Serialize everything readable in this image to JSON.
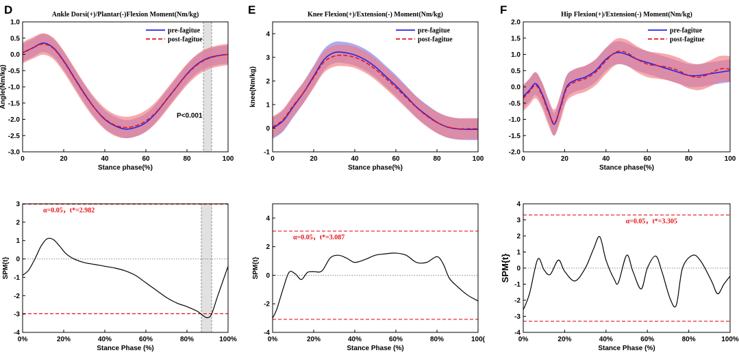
{
  "colors": {
    "pre": "#2323e8",
    "post": "#e8141b",
    "pre_band": "#8f8ff0",
    "post_band": "#f37b7f",
    "highlight": "#bdbdbd",
    "threshold": "#e8141b"
  },
  "chart_data": [
    {
      "type": "line",
      "panel_letter": "D",
      "title": "Ankle Dorsi(+)/Plantar(-)Flexion Moment(Nm/kg)",
      "xlabel": "Stance phase(%)",
      "ylabel": "Angle(Nm/kg)",
      "xlim": [
        0,
        100
      ],
      "ylim": [
        -3.0,
        1.0
      ],
      "xticks": [
        0,
        20,
        40,
        60,
        80,
        100
      ],
      "xtick_labels": [
        "0",
        "20",
        "40",
        "60",
        "80",
        "100"
      ],
      "yticks": [
        -3.0,
        -2.5,
        -2.0,
        -1.5,
        -1.0,
        -0.5,
        0.0,
        0.5,
        1.0
      ],
      "ytick_labels": [
        "-3.0",
        "-2.5",
        "-2.0",
        "-1.5",
        "-1.0",
        "-0.5",
        "0.0",
        "0.5",
        "1.0"
      ],
      "legend": [
        "pre-fagitue",
        "post-fagitue"
      ],
      "annotation": "P<0.001",
      "highlight_range": [
        88,
        92
      ],
      "x": [
        0,
        5,
        10,
        15,
        20,
        25,
        30,
        35,
        40,
        45,
        50,
        55,
        60,
        65,
        70,
        75,
        80,
        85,
        90,
        95,
        100
      ],
      "series": [
        {
          "name": "pre-fagitue",
          "values": [
            0.05,
            0.2,
            0.35,
            0.2,
            -0.2,
            -0.7,
            -1.2,
            -1.65,
            -2.0,
            -2.2,
            -2.3,
            -2.25,
            -2.1,
            -1.8,
            -1.4,
            -1.0,
            -0.6,
            -0.3,
            -0.12,
            -0.04,
            0.0
          ],
          "sd": 0.28
        },
        {
          "name": "post-fagitue",
          "values": [
            0.05,
            0.2,
            0.32,
            0.18,
            -0.22,
            -0.72,
            -1.22,
            -1.65,
            -1.98,
            -2.18,
            -2.25,
            -2.2,
            -2.05,
            -1.78,
            -1.4,
            -1.0,
            -0.62,
            -0.32,
            -0.14,
            -0.05,
            0.0
          ],
          "sd": 0.33
        }
      ]
    },
    {
      "type": "line",
      "panel_letter": "E",
      "title": "Knee Flexion(+)/Extension(-) Moment(Nm/kg)",
      "xlabel": "Stance phase(%)",
      "ylabel": "knee(Nm/kg)",
      "xlim": [
        0,
        100
      ],
      "ylim": [
        -1,
        4.5
      ],
      "xticks": [
        0,
        20,
        40,
        60,
        80,
        100
      ],
      "xtick_labels": [
        "0",
        "20",
        "40",
        "60",
        "80",
        "100"
      ],
      "yticks": [
        -1,
        0,
        1,
        2,
        3,
        4
      ],
      "ytick_labels": [
        "-1",
        "0",
        "1",
        "2",
        "3",
        "4"
      ],
      "legend": [
        "pre-fagitue",
        "post-fagitue"
      ],
      "x": [
        0,
        5,
        10,
        15,
        20,
        25,
        30,
        35,
        40,
        45,
        50,
        55,
        60,
        65,
        70,
        75,
        80,
        85,
        90,
        95,
        100
      ],
      "series": [
        {
          "name": "pre-fagitue",
          "values": [
            0.0,
            0.3,
            0.9,
            1.5,
            2.2,
            2.9,
            3.2,
            3.2,
            3.1,
            2.9,
            2.6,
            2.2,
            1.8,
            1.35,
            0.9,
            0.55,
            0.25,
            0.05,
            -0.03,
            -0.05,
            -0.05
          ],
          "sd": 0.45
        },
        {
          "name": "post-fagitue",
          "values": [
            0.05,
            0.35,
            0.95,
            1.5,
            2.15,
            2.8,
            3.05,
            3.08,
            3.0,
            2.8,
            2.5,
            2.12,
            1.72,
            1.3,
            0.88,
            0.52,
            0.24,
            0.06,
            -0.02,
            -0.02,
            -0.02
          ],
          "sd": 0.45
        }
      ]
    },
    {
      "type": "line",
      "panel_letter": "F",
      "title": "Hip  Flexion(+)/Extension(-) Moment(Nm/kg)",
      "xlabel": "Stance phase(%)",
      "ylabel": "",
      "xlim": [
        0,
        100
      ],
      "ylim": [
        -2.0,
        2.0
      ],
      "xticks": [
        0,
        20,
        40,
        60,
        80,
        100
      ],
      "xtick_labels": [
        "0",
        "20",
        "40",
        "60",
        "80",
        "100"
      ],
      "yticks": [
        -2.0,
        -1.5,
        -1.0,
        -0.5,
        0.0,
        0.5,
        1.0,
        1.5,
        2.0
      ],
      "ytick_labels": [
        "-2.0",
        "-1.5",
        "-1.0",
        "-0.5",
        "0.0",
        "0.5",
        "1.0",
        "1.5",
        "2.0"
      ],
      "legend": [
        "pre-fagitue",
        "post-fagitue"
      ],
      "x": [
        0,
        3,
        6,
        9,
        12,
        15,
        18,
        21,
        25,
        30,
        35,
        40,
        45,
        50,
        55,
        60,
        65,
        70,
        75,
        80,
        85,
        90,
        95,
        100
      ],
      "series": [
        {
          "name": "pre-fagitue",
          "values": [
            -0.3,
            -0.1,
            0.1,
            -0.2,
            -0.7,
            -1.15,
            -0.6,
            0.0,
            0.2,
            0.3,
            0.5,
            0.85,
            1.05,
            1.0,
            0.85,
            0.75,
            0.65,
            0.55,
            0.45,
            0.35,
            0.35,
            0.4,
            0.45,
            0.5
          ],
          "sd": 0.35
        },
        {
          "name": "post-fagitue",
          "values": [
            -0.35,
            -0.15,
            0.05,
            -0.25,
            -0.75,
            -1.1,
            -0.65,
            -0.05,
            0.15,
            0.25,
            0.45,
            0.8,
            1.08,
            1.05,
            0.85,
            0.7,
            0.65,
            0.6,
            0.5,
            0.35,
            0.3,
            0.4,
            0.55,
            0.55
          ],
          "sd": 0.4
        }
      ]
    },
    {
      "type": "line",
      "panel_letter": "",
      "title": "",
      "xlabel": "Stance Phase (%)",
      "ylabel": "SPM{t}",
      "xlim": [
        0,
        100
      ],
      "ylim": [
        -4,
        3
      ],
      "xticks": [
        0,
        20,
        40,
        60,
        80,
        100
      ],
      "xtick_labels": [
        "0%",
        "20%",
        "40%",
        "60%",
        "80%",
        "100%"
      ],
      "yticks": [
        -4,
        -3,
        -2,
        -1,
        0,
        1,
        2,
        3
      ],
      "ytick_labels": [
        "-4",
        "-3",
        "-2",
        "-1",
        "0",
        "1",
        "2",
        "3"
      ],
      "threshold": 2.982,
      "annotation": "α=0.05，t*=2.982",
      "highlight_range": [
        87,
        92
      ],
      "x": [
        0,
        3,
        6,
        9,
        12,
        15,
        18,
        21,
        25,
        30,
        35,
        40,
        45,
        50,
        55,
        60,
        65,
        70,
        75,
        80,
        85,
        88,
        90,
        92,
        95,
        100
      ],
      "series": [
        {
          "name": "SPM{t}",
          "values": [
            -0.9,
            -0.6,
            0.0,
            0.7,
            1.1,
            1.05,
            0.7,
            0.3,
            0.0,
            -0.2,
            -0.3,
            -0.4,
            -0.5,
            -0.65,
            -0.9,
            -1.3,
            -1.7,
            -2.1,
            -2.4,
            -2.6,
            -2.85,
            -3.1,
            -3.2,
            -3.0,
            -2.0,
            -0.4
          ]
        }
      ]
    },
    {
      "type": "line",
      "panel_letter": "",
      "title": "",
      "xlabel": "Stance Phase (%)",
      "ylabel": "SPM{t}",
      "xlim": [
        0,
        100
      ],
      "ylim": [
        -4,
        5
      ],
      "xticks": [
        0,
        20,
        40,
        60,
        80,
        100
      ],
      "xtick_labels": [
        "0%",
        "20%",
        "40%",
        "60%",
        "80%",
        "100("
      ],
      "yticks": [
        -4,
        -2,
        0,
        2,
        4
      ],
      "ytick_labels": [
        "-4",
        "-2",
        "0",
        "2",
        "4"
      ],
      "threshold": 3.087,
      "annotation": "α=0.05，t*=3.087",
      "x": [
        0,
        2,
        5,
        8,
        11,
        14,
        17,
        20,
        24,
        28,
        32,
        36,
        40,
        45,
        50,
        55,
        60,
        65,
        70,
        75,
        80,
        83,
        86,
        90,
        95,
        100
      ],
      "series": [
        {
          "name": "SPM{t}",
          "values": [
            -3.0,
            -2.4,
            -1.0,
            0.2,
            0.1,
            -0.3,
            0.2,
            0.25,
            0.3,
            1.2,
            1.4,
            1.2,
            0.9,
            1.1,
            1.4,
            1.5,
            1.55,
            1.4,
            0.9,
            0.9,
            1.3,
            0.8,
            -0.2,
            -0.8,
            -1.4,
            -1.8
          ]
        }
      ]
    },
    {
      "type": "line",
      "panel_letter": "",
      "title": "",
      "xlabel": "Stance Phase (%)",
      "ylabel": "SPM{t}",
      "xlim": [
        0,
        100
      ],
      "ylim": [
        -4,
        4
      ],
      "xticks": [
        0,
        20,
        40,
        60,
        80,
        100
      ],
      "xtick_labels": [
        "0%",
        "20%",
        "40%",
        "60%",
        "80%",
        "100%"
      ],
      "yticks": [
        -4,
        -3,
        -2,
        -1,
        0,
        1,
        2,
        3,
        4
      ],
      "ytick_labels": [
        "-4",
        "-3",
        "-2",
        "-1",
        "0",
        "1",
        "2",
        "3",
        "4"
      ],
      "threshold": 3.305,
      "annotation": "α=0.05，t*=3.305",
      "x": [
        0,
        3,
        7,
        10,
        13,
        17,
        20,
        25,
        30,
        34,
        37,
        40,
        44,
        46,
        50,
        53,
        57,
        60,
        64,
        67,
        71,
        74,
        77,
        82,
        86,
        91,
        94,
        97,
        100
      ],
      "series": [
        {
          "name": "SPM{t}",
          "values": [
            -2.6,
            -1.6,
            0.55,
            -0.1,
            -0.4,
            0.5,
            -0.2,
            -0.8,
            0.0,
            1.2,
            1.95,
            0.5,
            -0.7,
            -0.9,
            0.8,
            -0.2,
            -1.3,
            0.0,
            0.75,
            -0.2,
            -1.9,
            -2.3,
            0.0,
            0.8,
            0.4,
            -0.8,
            -1.6,
            -1.0,
            -0.5
          ]
        }
      ]
    }
  ]
}
